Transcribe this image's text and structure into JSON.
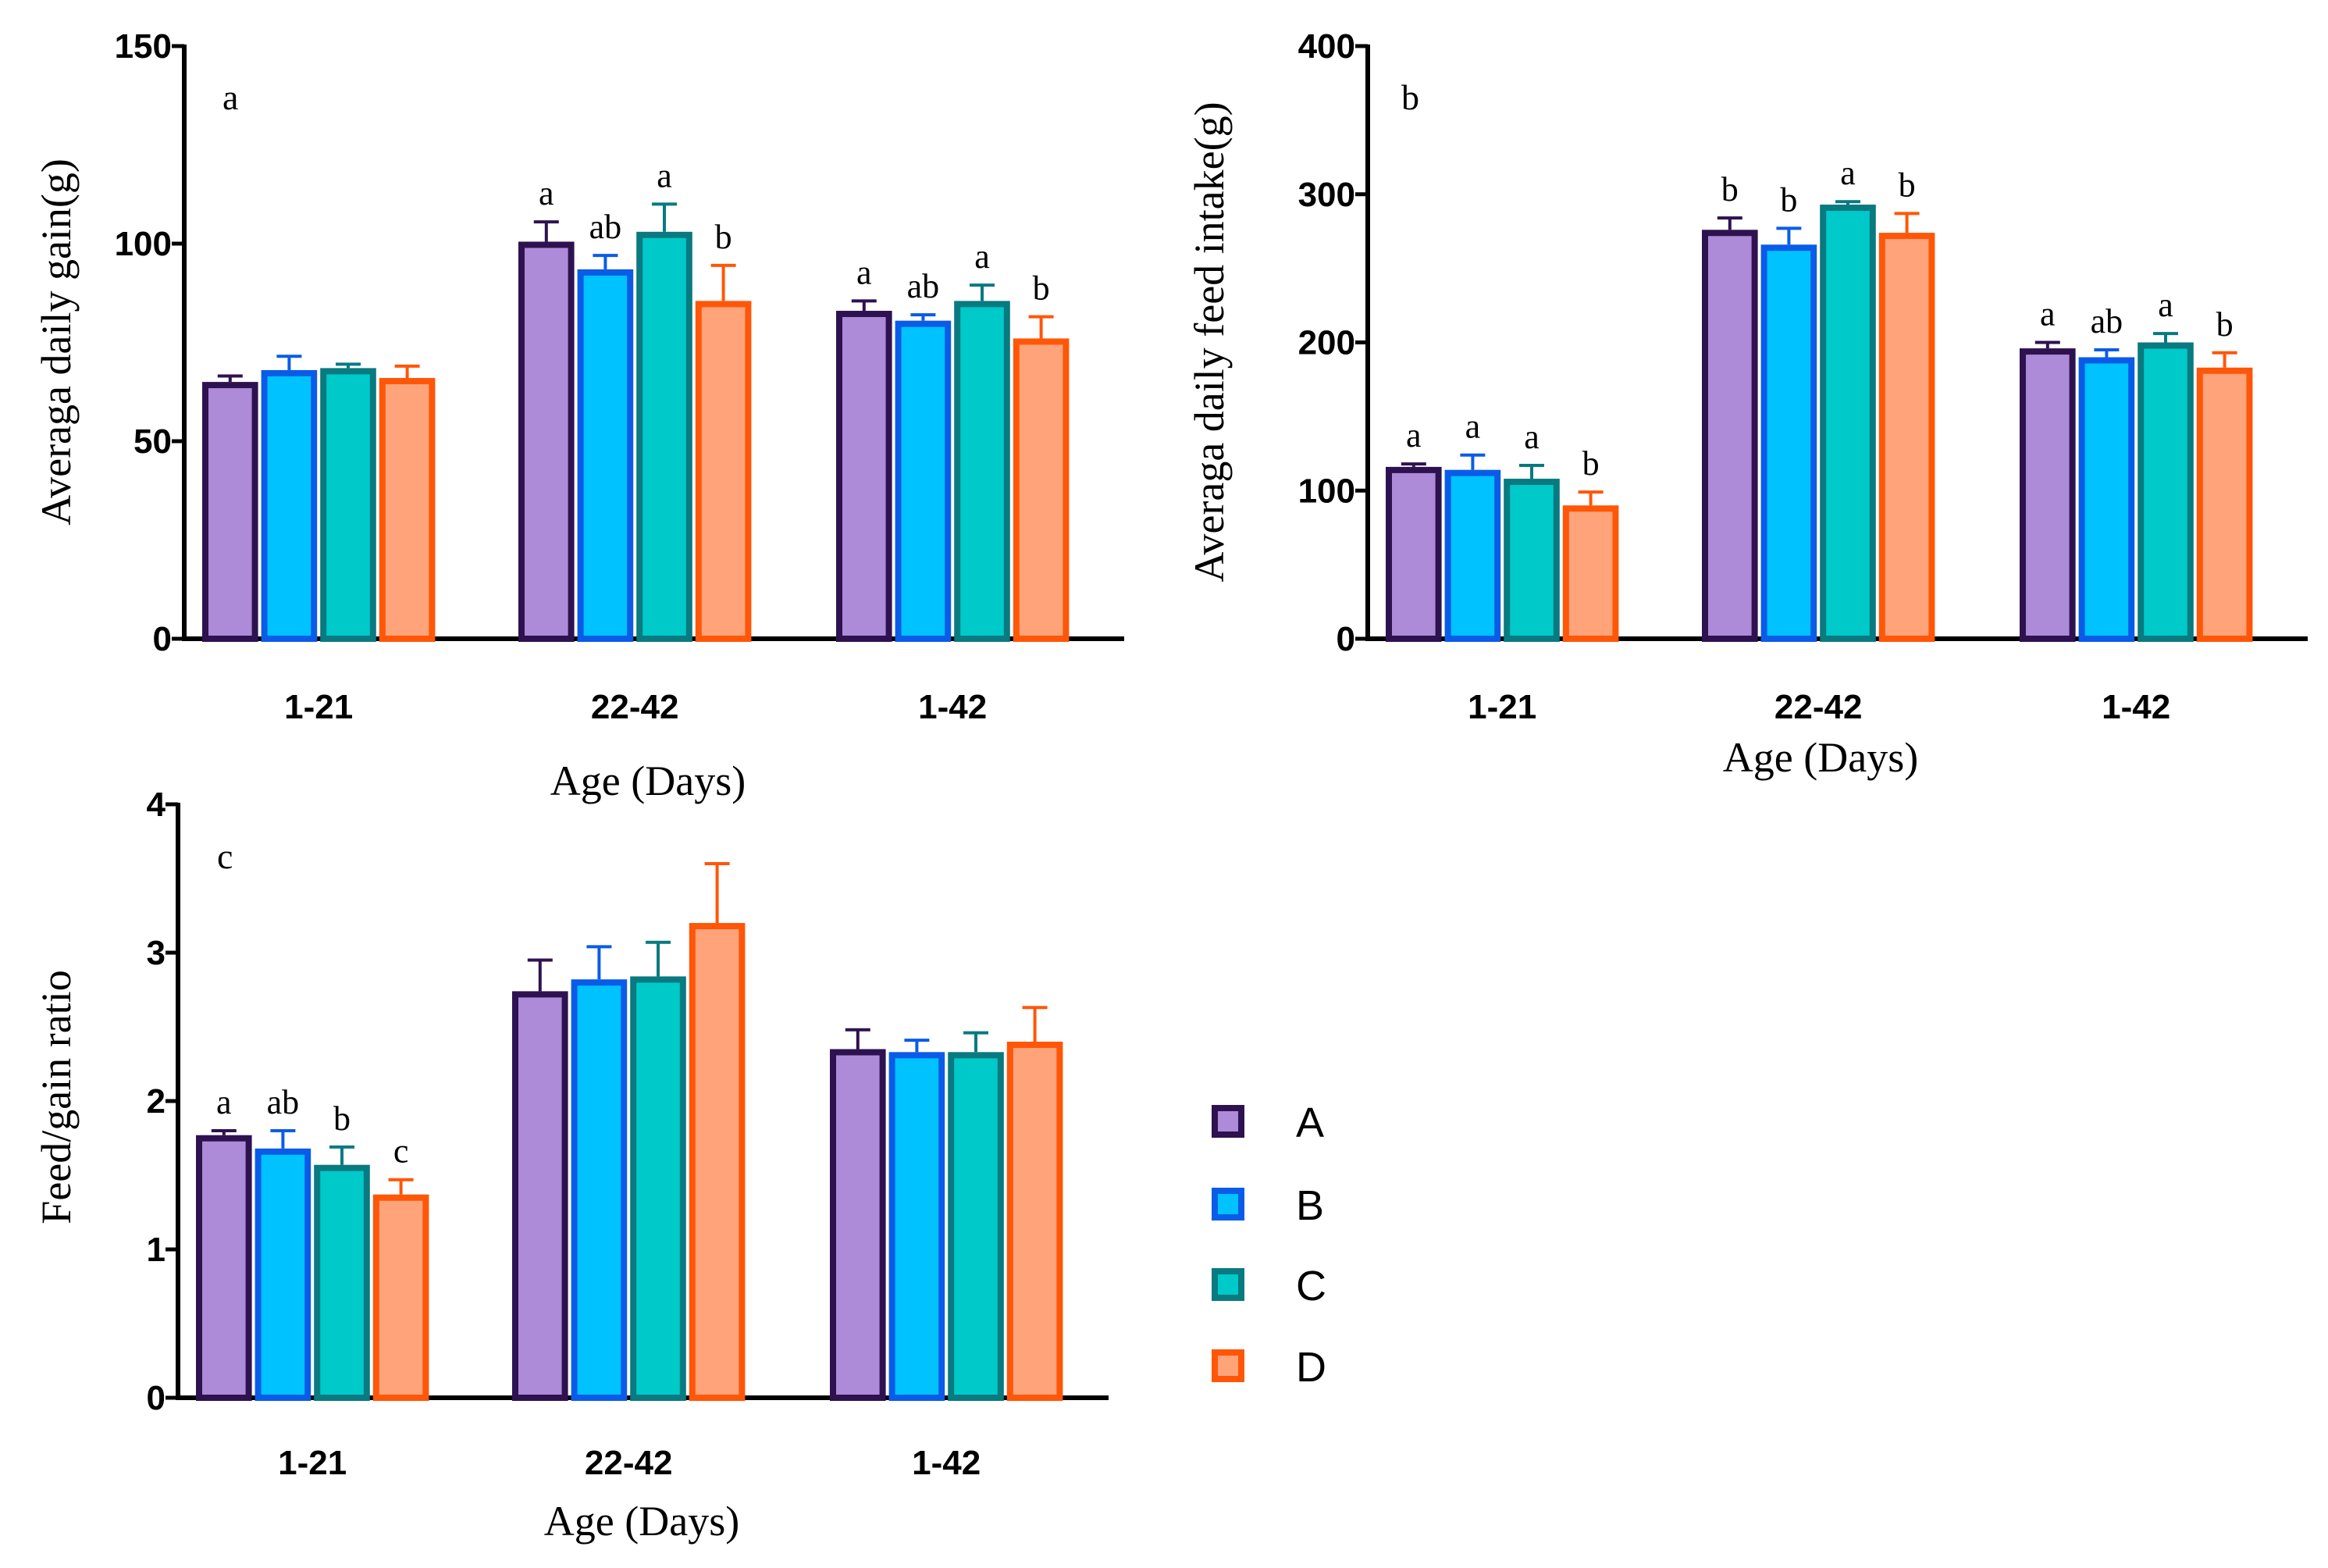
{
  "series_colors": [
    {
      "name": "A",
      "fill": "#AD8BD8",
      "stroke": "#2E1250"
    },
    {
      "name": "B",
      "fill": "#00C2FF",
      "stroke": "#0A5CE8"
    },
    {
      "name": "C",
      "fill": "#00C9C9",
      "stroke": "#087A80"
    },
    {
      "name": "D",
      "fill": "#FFA47A",
      "stroke": "#FF5608"
    }
  ],
  "legend": [
    "A",
    "B",
    "C",
    "D"
  ],
  "chart_data": [
    {
      "type": "bar",
      "panel": "a",
      "xlabel": "Age (Days)",
      "ylabel": "Averaga daily gain(g)",
      "categories": [
        "1-21",
        "22-42",
        "1-42"
      ],
      "ylim": [
        0,
        150
      ],
      "yticks": [
        0,
        50,
        100,
        150
      ],
      "series": [
        {
          "name": "A",
          "values": [
            65,
            100.5,
            83
          ],
          "errors": [
            1.5,
            5,
            2.5
          ],
          "labels": [
            "",
            "a",
            "a"
          ]
        },
        {
          "name": "B",
          "values": [
            68,
            93.5,
            80.5
          ],
          "errors": [
            3.5,
            3.5,
            1.5
          ],
          "labels": [
            "",
            "ab",
            "ab"
          ]
        },
        {
          "name": "C",
          "values": [
            68.5,
            103,
            85.5
          ],
          "errors": [
            1,
            7,
            4
          ],
          "labels": [
            "",
            "a",
            "a"
          ]
        },
        {
          "name": "D",
          "values": [
            66,
            85.5,
            76
          ],
          "errors": [
            3,
            9,
            5.5
          ],
          "labels": [
            "",
            "b",
            "b"
          ]
        }
      ]
    },
    {
      "type": "bar",
      "panel": "b",
      "xlabel": "Age (Days)",
      "ylabel": "Averaga daily feed intake(g)",
      "categories": [
        "1-21",
        "22-42",
        "1-42"
      ],
      "ylim": [
        0,
        400
      ],
      "yticks": [
        0,
        100,
        200,
        300,
        400
      ],
      "series": [
        {
          "name": "A",
          "values": [
            116,
            276,
            196
          ],
          "errors": [
            2,
            8,
            4
          ],
          "labels": [
            "a",
            "b",
            "a"
          ]
        },
        {
          "name": "B",
          "values": [
            114,
            266,
            190
          ],
          "errors": [
            10,
            11,
            5
          ],
          "labels": [
            "a",
            "b",
            "ab"
          ]
        },
        {
          "name": "C",
          "values": [
            108,
            293,
            200
          ],
          "errors": [
            9,
            2,
            6
          ],
          "labels": [
            "a",
            "a",
            "a"
          ]
        },
        {
          "name": "D",
          "values": [
            90,
            274,
            183
          ],
          "errors": [
            9,
            13,
            10
          ],
          "labels": [
            "b",
            "b",
            "b"
          ]
        }
      ]
    },
    {
      "type": "bar",
      "panel": "c",
      "xlabel": "Age (Days)",
      "ylabel": "Feed/gain ratio",
      "categories": [
        "1-21",
        "22-42",
        "1-42"
      ],
      "ylim": [
        0,
        4
      ],
      "yticks": [
        0,
        1,
        2,
        3,
        4
      ],
      "series": [
        {
          "name": "A",
          "values": [
            1.77,
            2.74,
            2.35
          ],
          "errors": [
            0.03,
            0.21,
            0.13
          ],
          "labels": [
            "a",
            "",
            ""
          ]
        },
        {
          "name": "B",
          "values": [
            1.68,
            2.82,
            2.33
          ],
          "errors": [
            0.12,
            0.22,
            0.08
          ],
          "labels": [
            "ab",
            "",
            ""
          ]
        },
        {
          "name": "C",
          "values": [
            1.57,
            2.84,
            2.33
          ],
          "errors": [
            0.12,
            0.23,
            0.13
          ],
          "labels": [
            "b",
            "",
            ""
          ]
        },
        {
          "name": "D",
          "values": [
            1.37,
            3.2,
            2.4
          ],
          "errors": [
            0.1,
            0.4,
            0.23
          ],
          "labels": [
            "c",
            "",
            ""
          ]
        }
      ]
    }
  ]
}
